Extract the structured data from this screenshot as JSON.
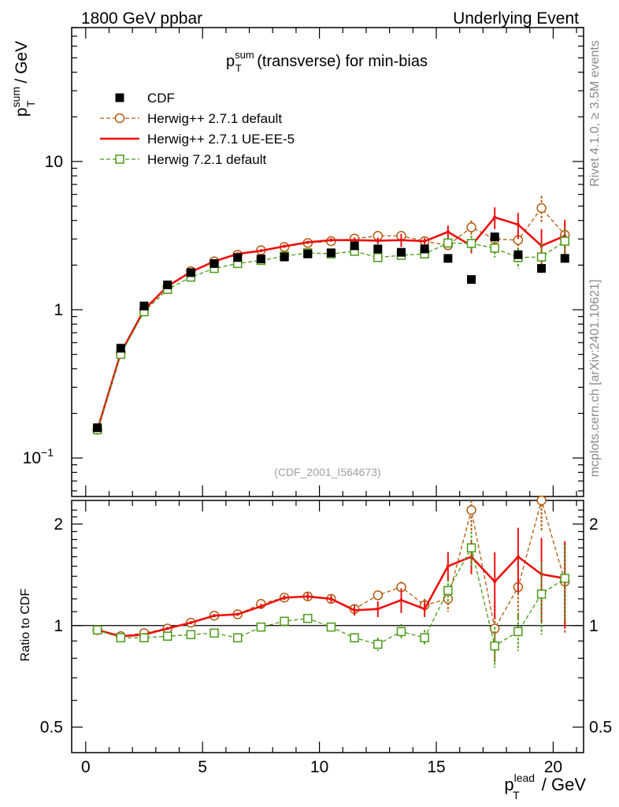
{
  "header": {
    "left": "1800 GeV ppbar",
    "right": "Underlying Event"
  },
  "side_labels": {
    "rivet": "Rivet 4.1.0, ≥ 3.5M events",
    "mcplots": "mcplots.cern.ch [arXiv:2401.10621]"
  },
  "chart_data": [
    {
      "type": "line",
      "panel": "main",
      "title": {
        "prefix": "p",
        "sup": "sum",
        "sub": "T",
        "suffix": " (transverse) for min-bias"
      },
      "ylabel": {
        "main": "p",
        "sup": "sum",
        "sub": "T",
        "suffix": " / GeV"
      },
      "yscale": "log",
      "ylim": [
        0.055,
        80
      ],
      "xlim": [
        -0.6,
        21.3
      ],
      "yticks": [
        {
          "value": 0.1,
          "label": "10",
          "exp": "−1"
        },
        {
          "value": 1,
          "label": "1",
          "exp": ""
        },
        {
          "value": 10,
          "label": "10",
          "exp": ""
        }
      ],
      "watermark": "(CDF_2001_I564673)",
      "legend_position": "top-left",
      "x": [
        0.5,
        1.5,
        2.5,
        3.5,
        4.5,
        5.5,
        6.5,
        7.5,
        8.5,
        9.5,
        10.5,
        11.5,
        12.5,
        13.5,
        14.5,
        15.5,
        16.5,
        17.5,
        18.5,
        19.5,
        20.5
      ],
      "series": [
        {
          "name": "CDF",
          "color": "#000000",
          "style": "data",
          "marker": "filled-square",
          "values": [
            0.16,
            0.55,
            1.06,
            1.47,
            1.78,
            2.05,
            2.25,
            2.2,
            2.27,
            2.38,
            2.42,
            2.7,
            2.57,
            2.44,
            2.57,
            2.22,
            1.6,
            3.1,
            2.35,
            1.9,
            2.22
          ]
        },
        {
          "name": "Herwig++ 2.7.1 default",
          "color": "#b25a0f",
          "style": "dashed",
          "marker": "open-circle",
          "values": [
            0.155,
            0.51,
            1.0,
            1.43,
            1.82,
            2.12,
            2.35,
            2.52,
            2.65,
            2.82,
            2.9,
            3.02,
            3.15,
            3.15,
            2.9,
            2.72,
            3.6,
            3.0,
            2.95,
            4.85,
            3.2
          ],
          "errors": [
            0,
            0,
            0,
            0,
            0,
            0,
            0,
            0,
            0,
            0,
            0,
            0.05,
            0.08,
            0.1,
            0.1,
            0.2,
            0.4,
            0.3,
            0.4,
            1.0,
            0.6
          ]
        },
        {
          "name": "Herwig++ 2.7.1 UE-EE-5",
          "color": "#ee1111",
          "style": "solid",
          "marker": "none",
          "values": [
            0.155,
            0.51,
            1.0,
            1.44,
            1.8,
            2.12,
            2.38,
            2.5,
            2.68,
            2.85,
            2.95,
            2.95,
            2.92,
            2.95,
            2.9,
            3.35,
            2.7,
            4.2,
            3.75,
            2.7,
            3.15
          ],
          "errors": [
            0,
            0,
            0,
            0,
            0,
            0,
            0,
            0.05,
            0.06,
            0.07,
            0.08,
            0.12,
            0.15,
            0.3,
            0.15,
            0.35,
            0.3,
            0.7,
            0.75,
            0.8,
            0.9
          ]
        },
        {
          "name": "Herwig 7.2.1 default",
          "color": "#4a9a17",
          "style": "dashed",
          "marker": "open-square",
          "values": [
            0.155,
            0.5,
            0.97,
            1.37,
            1.66,
            1.9,
            2.05,
            2.15,
            2.3,
            2.42,
            2.38,
            2.48,
            2.25,
            2.33,
            2.38,
            2.82,
            2.8,
            2.6,
            2.25,
            2.27,
            2.9
          ],
          "errors": [
            0,
            0,
            0,
            0,
            0,
            0,
            0,
            0,
            0,
            0,
            0,
            0.06,
            0.1,
            0.12,
            0.12,
            0.25,
            0.35,
            0.35,
            0.35,
            0.5,
            0.6
          ]
        }
      ]
    },
    {
      "type": "line",
      "panel": "ratio",
      "ylabel": "Ratio to CDF",
      "yscale": "log",
      "ylim": [
        0.42,
        2.35
      ],
      "yticks": [
        {
          "value": 0.5,
          "label": "0.5"
        },
        {
          "value": 1,
          "label": "1"
        },
        {
          "value": 2,
          "label": "2"
        }
      ],
      "xlabel": {
        "main": "p",
        "sup": "lead",
        "sub": "T",
        "suffix": " / GeV"
      },
      "xticks": [
        0,
        5,
        10,
        15,
        20
      ],
      "reference_line": 1,
      "x": [
        0.5,
        1.5,
        2.5,
        3.5,
        4.5,
        5.5,
        6.5,
        7.5,
        8.5,
        9.5,
        10.5,
        11.5,
        12.5,
        13.5,
        14.5,
        15.5,
        16.5,
        17.5,
        18.5,
        19.5,
        20.5
      ],
      "series": [
        {
          "name": "Herwig++ 2.7.1 default",
          "color": "#b25a0f",
          "style": "dashed",
          "marker": "open-circle",
          "values": [
            0.97,
            0.93,
            0.95,
            0.98,
            1.02,
            1.07,
            1.08,
            1.16,
            1.21,
            1.22,
            1.2,
            1.12,
            1.23,
            1.3,
            1.15,
            1.2,
            2.2,
            0.98,
            1.3,
            2.5,
            1.35
          ],
          "errors": [
            0,
            0,
            0,
            0,
            0,
            0,
            0,
            0,
            0.02,
            0.02,
            0.02,
            0.03,
            0.04,
            0.05,
            0.05,
            0.1,
            0.3,
            0.2,
            0.25,
            0.6,
            0.4
          ]
        },
        {
          "name": "Herwig++ 2.7.1 UE-EE-5",
          "color": "#ee1111",
          "style": "solid",
          "marker": "none",
          "values": [
            0.97,
            0.93,
            0.94,
            0.98,
            1.02,
            1.07,
            1.08,
            1.14,
            1.21,
            1.22,
            1.2,
            1.11,
            1.12,
            1.19,
            1.12,
            1.5,
            1.6,
            1.35,
            1.6,
            1.42,
            1.38
          ],
          "errors": [
            0,
            0,
            0,
            0,
            0,
            0,
            0,
            0.02,
            0.02,
            0.03,
            0.03,
            0.04,
            0.06,
            0.1,
            0.06,
            0.15,
            0.18,
            0.3,
            0.35,
            0.4,
            0.4
          ]
        },
        {
          "name": "Herwig 7.2.1 default",
          "color": "#4a9a17",
          "style": "dashed",
          "marker": "open-square",
          "values": [
            0.97,
            0.92,
            0.92,
            0.93,
            0.94,
            0.95,
            0.92,
            0.99,
            1.03,
            1.05,
            0.99,
            0.92,
            0.88,
            0.96,
            0.92,
            1.27,
            1.7,
            0.87,
            0.96,
            1.24,
            1.38
          ],
          "errors": [
            0,
            0,
            0,
            0,
            0,
            0,
            0,
            0,
            0.01,
            0.02,
            0.02,
            0.03,
            0.04,
            0.05,
            0.05,
            0.1,
            0.2,
            0.12,
            0.12,
            0.3,
            0.35
          ]
        }
      ]
    }
  ]
}
